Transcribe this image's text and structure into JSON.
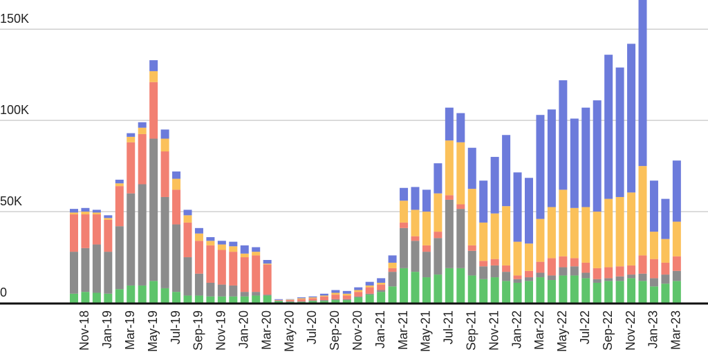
{
  "chart_data": {
    "type": "stacked-bar",
    "categories": [
      null,
      "Nov-18",
      null,
      "Jan-19",
      null,
      "Mar-19",
      null,
      "May-19",
      null,
      "Jul-19",
      null,
      "Sep-19",
      null,
      "Nov-19",
      null,
      "Jan-20",
      null,
      "Mar-20",
      null,
      "May-20",
      null,
      "Jul-20",
      null,
      "Sep-20",
      null,
      "Nov-20",
      null,
      "Jan-21",
      null,
      "Mar-21",
      null,
      "May-21",
      null,
      "Jul-21",
      null,
      "Sep-21",
      null,
      "Nov-21",
      null,
      "Jan-22",
      null,
      "Mar-22",
      null,
      "May-22",
      null,
      "Jul-22",
      null,
      "Sep-22",
      null,
      "Nov-22",
      null,
      "Jan-23",
      null,
      "Mar-23"
    ],
    "series": [
      {
        "color": "#5ec46b",
        "values": [
          5000,
          6000,
          5500,
          5000,
          7500,
          9500,
          9500,
          12000,
          8000,
          6000,
          4000,
          4000,
          3500,
          3500,
          3500,
          3500,
          4000,
          4000,
          1000,
          500,
          500,
          1000,
          1000,
          1500,
          1500,
          3000,
          4500,
          6000,
          9000,
          19000,
          17000,
          14000,
          15500,
          19000,
          19000,
          15000,
          13000,
          14000,
          12000,
          11000,
          12000,
          14000,
          12500,
          15000,
          15000,
          13500,
          11000,
          12000,
          12000,
          13500,
          12000,
          9000,
          10500,
          12000
        ]
      },
      {
        "color": "#8c8c8c",
        "values": [
          23000,
          24000,
          26500,
          23000,
          34500,
          50500,
          55500,
          78000,
          50000,
          37000,
          21000,
          12000,
          7500,
          6500,
          6000,
          2500,
          2000,
          500,
          200,
          300,
          300,
          300,
          500,
          500,
          500,
          500,
          500,
          1000,
          8000,
          22000,
          17000,
          14000,
          20000,
          37500,
          32500,
          13500,
          7000,
          6500,
          5000,
          2000,
          2000,
          2500,
          2500,
          4500,
          5000,
          3000,
          2000,
          1500,
          2500,
          2000,
          4000,
          4500,
          5000,
          5500
        ]
      },
      {
        "color": "#f28072",
        "values": [
          20500,
          18500,
          16500,
          17500,
          22000,
          28000,
          27500,
          31000,
          25000,
          19000,
          19000,
          18000,
          20500,
          19000,
          18500,
          19000,
          20000,
          16500,
          300,
          700,
          1200,
          1200,
          2000,
          2500,
          2000,
          2500,
          3500,
          3000,
          2000,
          3000,
          2500,
          3500,
          3500,
          2500,
          2500,
          3000,
          3000,
          3500,
          3500,
          2000,
          3500,
          6000,
          9500,
          6000,
          4500,
          5500,
          6000,
          6000,
          5500,
          5000,
          10000,
          10500,
          6500,
          8000
        ]
      },
      {
        "color": "#fbc15a",
        "values": [
          1000,
          1500,
          1000,
          1000,
          1500,
          3000,
          3500,
          6000,
          7000,
          6000,
          4000,
          4000,
          2500,
          3000,
          3000,
          2000,
          2000,
          500,
          100,
          300,
          500,
          500,
          500,
          1000,
          1000,
          1000,
          1000,
          1000,
          3000,
          12000,
          14500,
          18500,
          21000,
          30000,
          34000,
          31000,
          21000,
          25000,
          32500,
          18500,
          15000,
          23500,
          28000,
          36500,
          27500,
          30500,
          31000,
          37500,
          38000,
          40000,
          49000,
          15000,
          13000,
          19000
        ]
      },
      {
        "color": "#6c7bdb",
        "values": [
          2000,
          2000,
          1500,
          1500,
          2000,
          2000,
          3000,
          6000,
          5000,
          4000,
          3000,
          3000,
          2000,
          2000,
          2500,
          4500,
          2500,
          2000,
          400,
          200,
          500,
          500,
          1000,
          1500,
          1500,
          1500,
          2000,
          2500,
          4000,
          7000,
          12500,
          12000,
          16500,
          18000,
          16000,
          22500,
          23000,
          31000,
          39000,
          38000,
          36000,
          57000,
          53500,
          60000,
          49000,
          54500,
          61000,
          79000,
          71000,
          81500,
          91000,
          28000,
          22000,
          33500
        ]
      }
    ],
    "ylim": [
      0,
      166000
    ],
    "yticks": [
      0,
      {
        "value": 50000,
        "label": "50K"
      },
      {
        "value": 100000,
        "label": "100K"
      },
      {
        "value": 150000,
        "label": "150K"
      }
    ],
    "grid": true
  }
}
